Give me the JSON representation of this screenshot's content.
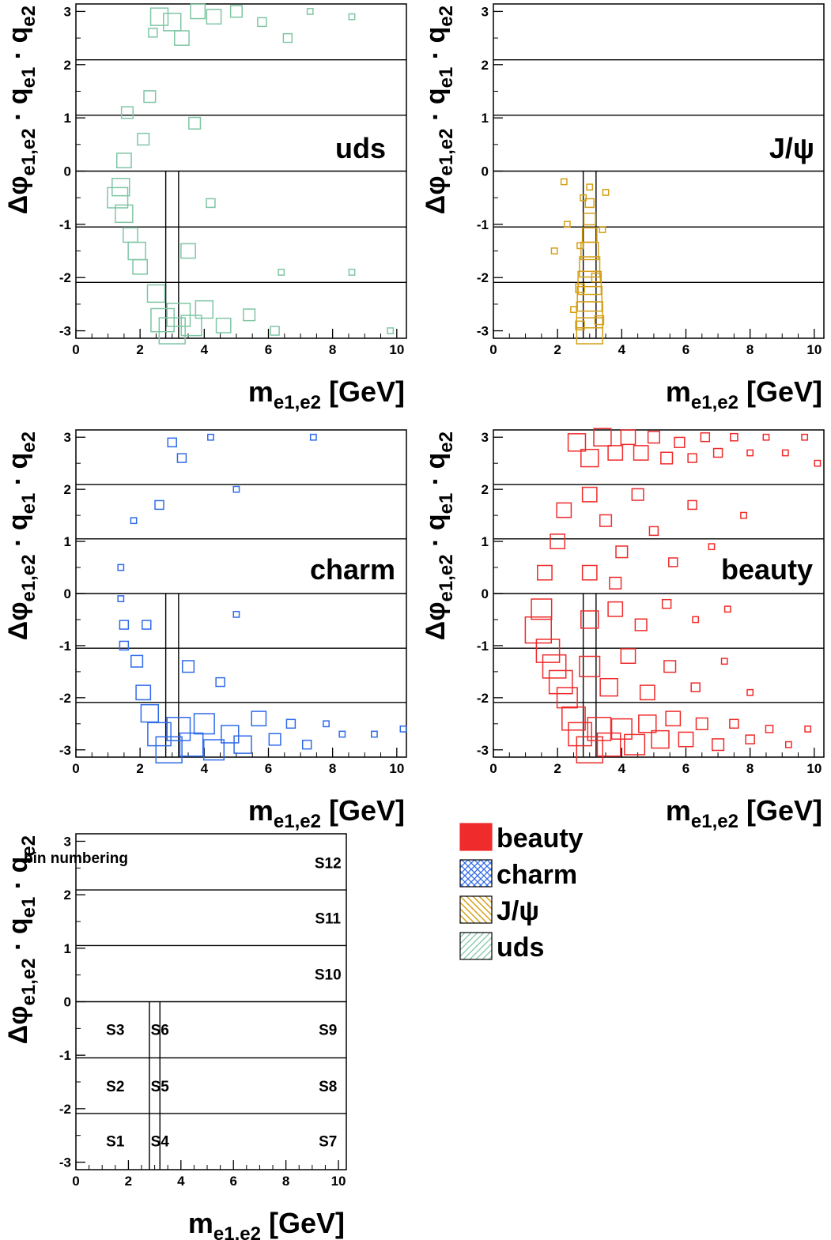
{
  "colors": {
    "uds": "#7fc6a4",
    "jpsi": "#d4a017",
    "charm": "#2f6bea",
    "beauty": "#ef2b2b",
    "axis": "#000000"
  },
  "axis_text": {
    "x_title_main": "m",
    "x_title_sub": "e1,e2",
    "x_title_unit": " [GeV]",
    "y_title_phi": "Δφ",
    "y_title_phi_sub": "e1,e2",
    "y_title_q1": " · q",
    "y_title_q1_sub": "e1",
    "y_title_q2": " · q",
    "y_title_q2_sub": "e2"
  },
  "bin_numbering_title": "bin numbering",
  "legend": [
    {
      "key": "beauty",
      "label": "beauty",
      "pattern": "solid"
    },
    {
      "key": "charm",
      "label": "charm",
      "pattern": "crosshatch"
    },
    {
      "key": "jpsi",
      "label": "J/ψ",
      "pattern": "hatch-down"
    },
    {
      "key": "uds",
      "label": "uds",
      "pattern": "hatch-up"
    }
  ],
  "chart_data": [
    {
      "type": "heatmap",
      "title": "uds",
      "xlabel": "m_{e1,e2} [GeV]",
      "ylabel": "Δφ_{e1,e2} · q_{e1} · q_{e2}",
      "xlim": [
        0,
        10.3
      ],
      "ylim": [
        -3.14,
        3.14
      ],
      "x_ticks": [
        0,
        2,
        4,
        6,
        8,
        10
      ],
      "y_ticks": [
        -3,
        -2,
        -1,
        0,
        1,
        2,
        3
      ],
      "bin_lines": {
        "y": [
          -2.09,
          -1.05,
          0,
          1.05,
          2.09
        ],
        "x": [
          2.8,
          3.2
        ]
      },
      "color_key": "uds",
      "points": [
        [
          1.3,
          -0.5,
          0.7
        ],
        [
          1.4,
          -0.3,
          0.6
        ],
        [
          1.5,
          -0.8,
          0.6
        ],
        [
          1.5,
          0.2,
          0.5
        ],
        [
          1.6,
          1.1,
          0.4
        ],
        [
          1.7,
          -1.2,
          0.5
        ],
        [
          1.9,
          -1.5,
          0.6
        ],
        [
          2.0,
          -1.8,
          0.5
        ],
        [
          2.1,
          0.6,
          0.4
        ],
        [
          2.3,
          1.4,
          0.4
        ],
        [
          2.4,
          2.6,
          0.3
        ],
        [
          2.5,
          -2.3,
          0.6
        ],
        [
          2.6,
          2.9,
          0.6
        ],
        [
          2.7,
          -2.8,
          0.8
        ],
        [
          3.0,
          -3.0,
          0.9
        ],
        [
          3.2,
          -2.7,
          0.8
        ],
        [
          3.0,
          2.8,
          0.6
        ],
        [
          3.3,
          2.5,
          0.5
        ],
        [
          3.6,
          -2.9,
          0.7
        ],
        [
          3.8,
          3.0,
          0.5
        ],
        [
          4.0,
          -2.6,
          0.6
        ],
        [
          4.3,
          2.9,
          0.5
        ],
        [
          4.6,
          -2.9,
          0.5
        ],
        [
          5.0,
          3.0,
          0.4
        ],
        [
          5.4,
          -2.7,
          0.4
        ],
        [
          5.8,
          2.8,
          0.3
        ],
        [
          6.2,
          -3.0,
          0.3
        ],
        [
          6.4,
          -1.9,
          0.2
        ],
        [
          6.6,
          2.5,
          0.3
        ],
        [
          7.3,
          3.0,
          0.2
        ],
        [
          8.6,
          2.9,
          0.2
        ],
        [
          8.6,
          -1.9,
          0.2
        ],
        [
          9.8,
          -3.0,
          0.2
        ],
        [
          3.5,
          -1.5,
          0.5
        ],
        [
          3.7,
          0.9,
          0.4
        ],
        [
          4.2,
          -0.6,
          0.3
        ]
      ]
    },
    {
      "type": "heatmap",
      "title": "J/ψ",
      "xlabel": "m_{e1,e2} [GeV]",
      "ylabel": "Δφ_{e1,e2} · q_{e1} · q_{e2}",
      "xlim": [
        0,
        10.3
      ],
      "ylim": [
        -3.14,
        3.14
      ],
      "x_ticks": [
        0,
        2,
        4,
        6,
        8,
        10
      ],
      "y_ticks": [
        -3,
        -2,
        -1,
        0,
        1,
        2,
        3
      ],
      "bin_lines": {
        "y": [
          -2.09,
          -1.05,
          0,
          1.05,
          2.09
        ],
        "x": [
          2.8,
          3.2
        ]
      },
      "color_key": "jpsi",
      "points": [
        [
          3.0,
          -3.0,
          0.9
        ],
        [
          3.0,
          -2.7,
          0.9
        ],
        [
          3.0,
          -2.4,
          0.85
        ],
        [
          3.0,
          -2.1,
          0.8
        ],
        [
          3.0,
          -1.8,
          0.7
        ],
        [
          3.0,
          -1.5,
          0.6
        ],
        [
          3.0,
          -1.2,
          0.5
        ],
        [
          3.0,
          -0.9,
          0.4
        ],
        [
          3.0,
          -0.6,
          0.3
        ],
        [
          3.0,
          -0.3,
          0.2
        ],
        [
          2.7,
          -2.9,
          0.3
        ],
        [
          2.7,
          -2.2,
          0.3
        ],
        [
          2.7,
          -1.4,
          0.2
        ],
        [
          2.5,
          -2.6,
          0.2
        ],
        [
          2.3,
          -1.0,
          0.2
        ],
        [
          2.2,
          -0.2,
          0.2
        ],
        [
          1.9,
          -1.5,
          0.2
        ],
        [
          3.3,
          -2.8,
          0.3
        ],
        [
          3.4,
          -1.1,
          0.2
        ],
        [
          3.5,
          -0.4,
          0.2
        ],
        [
          2.8,
          -0.5,
          0.2
        ],
        [
          3.2,
          -2.0,
          0.3
        ]
      ]
    },
    {
      "type": "heatmap",
      "title": "charm",
      "xlabel": "m_{e1,e2} [GeV]",
      "ylabel": "Δφ_{e1,e2} · q_{e1} · q_{e2}",
      "xlim": [
        0,
        10.3
      ],
      "ylim": [
        -3.14,
        3.14
      ],
      "x_ticks": [
        0,
        2,
        4,
        6,
        8,
        10
      ],
      "y_ticks": [
        -3,
        -2,
        -1,
        0,
        1,
        2,
        3
      ],
      "bin_lines": {
        "y": [
          -2.09,
          -1.05,
          0,
          1.05,
          2.09
        ],
        "x": [
          2.8,
          3.2
        ]
      },
      "color_key": "charm",
      "points": [
        [
          1.4,
          -0.1,
          0.2
        ],
        [
          1.4,
          0.5,
          0.2
        ],
        [
          1.5,
          -0.6,
          0.3
        ],
        [
          1.5,
          -1.0,
          0.3
        ],
        [
          1.8,
          1.4,
          0.2
        ],
        [
          1.9,
          -1.3,
          0.4
        ],
        [
          2.1,
          -1.9,
          0.5
        ],
        [
          2.3,
          -2.3,
          0.6
        ],
        [
          2.6,
          -2.7,
          0.8
        ],
        [
          2.9,
          -3.0,
          0.9
        ],
        [
          3.2,
          -2.6,
          0.8
        ],
        [
          3.6,
          -2.9,
          0.8
        ],
        [
          4.0,
          -2.5,
          0.7
        ],
        [
          4.3,
          -3.0,
          0.7
        ],
        [
          4.8,
          -2.7,
          0.6
        ],
        [
          5.2,
          -2.9,
          0.6
        ],
        [
          5.7,
          -2.4,
          0.5
        ],
        [
          6.2,
          -2.8,
          0.4
        ],
        [
          6.7,
          -2.5,
          0.3
        ],
        [
          7.2,
          -2.9,
          0.3
        ],
        [
          7.8,
          -2.5,
          0.2
        ],
        [
          8.3,
          -2.7,
          0.2
        ],
        [
          9.3,
          -2.7,
          0.2
        ],
        [
          10.2,
          -2.6,
          0.2
        ],
        [
          3.0,
          2.9,
          0.3
        ],
        [
          3.3,
          2.6,
          0.3
        ],
        [
          2.6,
          1.7,
          0.3
        ],
        [
          4.2,
          3.0,
          0.2
        ],
        [
          5.0,
          2.0,
          0.2
        ],
        [
          7.4,
          3.0,
          0.2
        ],
        [
          3.5,
          -1.4,
          0.4
        ],
        [
          4.5,
          -1.7,
          0.3
        ],
        [
          5.0,
          -0.4,
          0.2
        ],
        [
          2.2,
          -0.6,
          0.3
        ]
      ]
    },
    {
      "type": "heatmap",
      "title": "beauty",
      "xlabel": "m_{e1,e2} [GeV]",
      "ylabel": "Δφ_{e1,e2} · q_{e1} · q_{e2}",
      "xlim": [
        0,
        10.3
      ],
      "ylim": [
        -3.14,
        3.14
      ],
      "x_ticks": [
        0,
        2,
        4,
        6,
        8,
        10
      ],
      "y_ticks": [
        -3,
        -2,
        -1,
        0,
        1,
        2,
        3
      ],
      "bin_lines": {
        "y": [
          -2.09,
          -1.05,
          0,
          1.05,
          2.09
        ],
        "x": [
          2.8,
          3.2
        ]
      },
      "color_key": "beauty",
      "points": [
        [
          1.4,
          -0.7,
          0.9
        ],
        [
          1.5,
          -0.3,
          0.7
        ],
        [
          1.6,
          0.4,
          0.5
        ],
        [
          1.7,
          -1.1,
          0.8
        ],
        [
          1.9,
          -1.4,
          0.8
        ],
        [
          2.1,
          -1.7,
          0.8
        ],
        [
          2.3,
          -2.0,
          0.7
        ],
        [
          2.5,
          -2.4,
          0.8
        ],
        [
          2.7,
          -2.7,
          0.8
        ],
        [
          3.0,
          -3.0,
          0.9
        ],
        [
          3.3,
          -2.6,
          0.8
        ],
        [
          3.6,
          -2.9,
          0.8
        ],
        [
          4.0,
          -2.6,
          0.7
        ],
        [
          4.4,
          -2.9,
          0.7
        ],
        [
          4.8,
          -2.5,
          0.6
        ],
        [
          5.2,
          -2.8,
          0.6
        ],
        [
          5.6,
          -2.4,
          0.5
        ],
        [
          6.0,
          -2.8,
          0.5
        ],
        [
          6.5,
          -2.5,
          0.4
        ],
        [
          7.0,
          -2.9,
          0.4
        ],
        [
          7.5,
          -2.5,
          0.3
        ],
        [
          8.0,
          -2.8,
          0.3
        ],
        [
          8.6,
          -2.6,
          0.25
        ],
        [
          9.2,
          -2.9,
          0.2
        ],
        [
          9.8,
          -2.6,
          0.2
        ],
        [
          2.6,
          2.9,
          0.6
        ],
        [
          3.0,
          2.6,
          0.6
        ],
        [
          3.4,
          3.0,
          0.6
        ],
        [
          3.8,
          2.7,
          0.5
        ],
        [
          4.2,
          3.0,
          0.5
        ],
        [
          4.6,
          2.7,
          0.5
        ],
        [
          5.0,
          3.0,
          0.4
        ],
        [
          5.4,
          2.6,
          0.4
        ],
        [
          5.8,
          2.9,
          0.35
        ],
        [
          6.2,
          2.6,
          0.3
        ],
        [
          6.6,
          3.0,
          0.3
        ],
        [
          7.0,
          2.7,
          0.3
        ],
        [
          7.5,
          3.0,
          0.25
        ],
        [
          8.0,
          2.7,
          0.2
        ],
        [
          8.5,
          3.0,
          0.2
        ],
        [
          9.1,
          2.7,
          0.2
        ],
        [
          9.7,
          3.0,
          0.2
        ],
        [
          10.1,
          2.5,
          0.2
        ],
        [
          2.2,
          1.6,
          0.5
        ],
        [
          2.0,
          1.0,
          0.5
        ],
        [
          3.0,
          1.9,
          0.5
        ],
        [
          3.5,
          1.4,
          0.4
        ],
        [
          4.0,
          0.8,
          0.4
        ],
        [
          4.5,
          1.9,
          0.4
        ],
        [
          5.0,
          1.2,
          0.3
        ],
        [
          5.6,
          0.6,
          0.3
        ],
        [
          6.2,
          1.7,
          0.3
        ],
        [
          6.8,
          0.9,
          0.2
        ],
        [
          7.8,
          1.5,
          0.2
        ],
        [
          3.0,
          -1.4,
          0.7
        ],
        [
          3.6,
          -1.8,
          0.6
        ],
        [
          4.2,
          -1.2,
          0.5
        ],
        [
          4.8,
          -1.9,
          0.5
        ],
        [
          5.5,
          -1.4,
          0.4
        ],
        [
          6.3,
          -1.8,
          0.3
        ],
        [
          7.2,
          -1.3,
          0.2
        ],
        [
          8.0,
          -1.9,
          0.2
        ],
        [
          3.0,
          -0.5,
          0.6
        ],
        [
          3.8,
          -0.3,
          0.5
        ],
        [
          4.6,
          -0.6,
          0.4
        ],
        [
          5.4,
          -0.2,
          0.3
        ],
        [
          6.3,
          -0.5,
          0.2
        ],
        [
          7.3,
          -0.3,
          0.2
        ],
        [
          3.0,
          0.4,
          0.5
        ],
        [
          3.8,
          0.2,
          0.4
        ]
      ]
    },
    {
      "type": "table",
      "title": "bin numbering",
      "xlabel": "m_{e1,e2} [GeV]",
      "ylabel": "Δφ_{e1,e2} · q_{e1} · q_{e2}",
      "xlim": [
        0,
        10.3
      ],
      "ylim": [
        -3.14,
        3.14
      ],
      "x_ticks": [
        0,
        2,
        4,
        6,
        8,
        10
      ],
      "y_ticks": [
        -3,
        -2,
        -1,
        0,
        1,
        2,
        3
      ],
      "bin_lines": {
        "y": [
          -2.09,
          -1.05,
          0,
          1.05,
          2.09
        ],
        "x": [
          2.8,
          3.2
        ]
      },
      "bins": [
        {
          "label": "S1",
          "x": 1.5,
          "y": -2.6
        },
        {
          "label": "S2",
          "x": 1.5,
          "y": -1.57
        },
        {
          "label": "S3",
          "x": 1.5,
          "y": -0.52
        },
        {
          "label": "S4",
          "x": 3.2,
          "y": -2.6
        },
        {
          "label": "S5",
          "x": 3.2,
          "y": -1.57
        },
        {
          "label": "S6",
          "x": 3.2,
          "y": -0.52
        },
        {
          "label": "S7",
          "x": 9.6,
          "y": -2.6
        },
        {
          "label": "S8",
          "x": 9.6,
          "y": -1.57
        },
        {
          "label": "S9",
          "x": 9.6,
          "y": -0.52
        },
        {
          "label": "S10",
          "x": 9.6,
          "y": 0.52
        },
        {
          "label": "S11",
          "x": 9.6,
          "y": 1.57
        },
        {
          "label": "S12",
          "x": 9.6,
          "y": 2.6
        }
      ]
    }
  ]
}
